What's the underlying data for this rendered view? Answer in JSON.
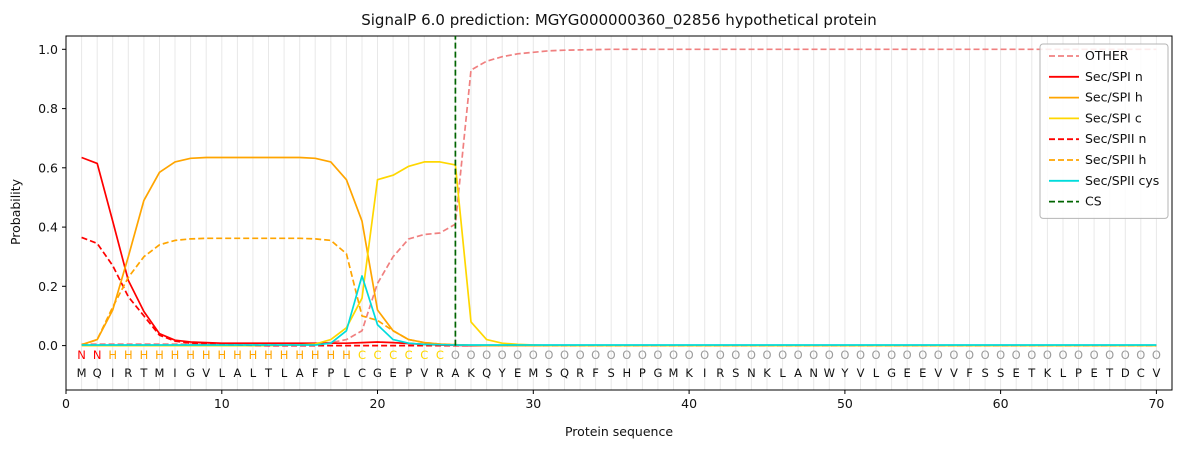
{
  "chart_data": {
    "type": "line",
    "title": "SignalP 6.0 prediction: MGYG000000360_02856 hypothetical protein",
    "xlabel": "Protein sequence",
    "ylabel": "Probability",
    "xticks": [
      0,
      10,
      20,
      30,
      40,
      50,
      60,
      70
    ],
    "yticks": [
      0,
      0.2,
      0.4,
      0.6,
      0.8,
      1
    ],
    "xlim": [
      0,
      71
    ],
    "ylim": [
      0,
      1.05
    ],
    "grid": "vertical-per-residue",
    "legend_position": "upper right",
    "sequence": "MQIRTMIGVLALTLAFPLCGEPVRAKQYEMSQRFSHPGMKIRSNKLANWYVLGEEVVFSSETKLPETDCV",
    "region_labels": "NNHHHHHHHHHHHHHHHHCCCCCCOOOOOOOOOOOOOOOOOOOOOOOOOOOOOOOOOOOOOOOOOOOOOO",
    "region_colors": {
      "N": "#ff0000",
      "H": "#ffa500",
      "C": "#ffd700",
      "O": "#9c9c9c"
    },
    "cs": {
      "label": "CS",
      "x": 25,
      "color": "#006400"
    },
    "series": [
      {
        "name": "OTHER",
        "color": "#f08080",
        "dash": true,
        "values": [
          0.005,
          0.005,
          0.005,
          0.005,
          0.005,
          0.005,
          0.005,
          0.005,
          0.005,
          0.005,
          0.005,
          0.005,
          0.005,
          0.005,
          0.005,
          0.007,
          0.01,
          0.02,
          0.05,
          0.21,
          0.3,
          0.36,
          0.375,
          0.38,
          0.41,
          0.93,
          0.96,
          0.975,
          0.985,
          0.99,
          0.995,
          0.997,
          0.998,
          0.999,
          1.0,
          1.0,
          1.0,
          1.0,
          1.0,
          1.0,
          1.0,
          1.0,
          1.0,
          1.0,
          1.0,
          1.0,
          1.0,
          1.0,
          1.0,
          1.0,
          1.0,
          1.0,
          1.0,
          1.0,
          1.0,
          1.0,
          1.0,
          1.0,
          1.0,
          1.0,
          1.0,
          1.0,
          1.0,
          1.0,
          1.0,
          1.0,
          1.0,
          1.0,
          1.0,
          1.0
        ]
      },
      {
        "name": "Sec/SPI n",
        "color": "#ff0000",
        "dash": false,
        "values": [
          0.635,
          0.615,
          0.42,
          0.22,
          0.115,
          0.04,
          0.018,
          0.012,
          0.01,
          0.008,
          0.008,
          0.008,
          0.008,
          0.008,
          0.008,
          0.008,
          0.008,
          0.008,
          0.01,
          0.012,
          0.01,
          0.007,
          0.004,
          0.002,
          0.001,
          0,
          0,
          0,
          0,
          0,
          0,
          0,
          0,
          0,
          0,
          0,
          0,
          0,
          0,
          0,
          0,
          0,
          0,
          0,
          0,
          0,
          0,
          0,
          0,
          0,
          0,
          0,
          0,
          0,
          0,
          0,
          0,
          0,
          0,
          0,
          0,
          0,
          0,
          0,
          0,
          0,
          0,
          0,
          0,
          0
        ]
      },
      {
        "name": "Sec/SPI h",
        "color": "#ffa500",
        "dash": false,
        "values": [
          0.003,
          0.02,
          0.12,
          0.3,
          0.49,
          0.585,
          0.62,
          0.632,
          0.635,
          0.635,
          0.635,
          0.635,
          0.635,
          0.635,
          0.635,
          0.632,
          0.62,
          0.56,
          0.42,
          0.12,
          0.05,
          0.02,
          0.01,
          0.005,
          0.003,
          0.001,
          0,
          0,
          0,
          0,
          0,
          0,
          0,
          0,
          0,
          0,
          0,
          0,
          0,
          0,
          0,
          0,
          0,
          0,
          0,
          0,
          0,
          0,
          0,
          0,
          0,
          0,
          0,
          0,
          0,
          0,
          0,
          0,
          0,
          0,
          0,
          0,
          0,
          0,
          0,
          0,
          0,
          0,
          0,
          0
        ]
      },
      {
        "name": "Sec/SPI c",
        "color": "#ffd700",
        "dash": false,
        "values": [
          0,
          0,
          0,
          0,
          0,
          0,
          0,
          0,
          0,
          0,
          0,
          0,
          0,
          0.001,
          0.002,
          0.005,
          0.02,
          0.06,
          0.16,
          0.56,
          0.575,
          0.605,
          0.62,
          0.62,
          0.61,
          0.08,
          0.02,
          0.008,
          0.004,
          0.002,
          0,
          0,
          0,
          0,
          0,
          0,
          0,
          0,
          0,
          0,
          0,
          0,
          0,
          0,
          0,
          0,
          0,
          0,
          0,
          0,
          0,
          0,
          0,
          0,
          0,
          0,
          0,
          0,
          0,
          0,
          0,
          0,
          0,
          0,
          0,
          0,
          0,
          0,
          0,
          0
        ]
      },
      {
        "name": "Sec/SPII n",
        "color": "#ff0000",
        "dash": true,
        "values": [
          0.365,
          0.345,
          0.27,
          0.165,
          0.1,
          0.035,
          0.015,
          0.008,
          0.005,
          0.003,
          0.002,
          0.001,
          0,
          0,
          0,
          0,
          0,
          0,
          0,
          0,
          0,
          0,
          0,
          0,
          0,
          0,
          0,
          0,
          0,
          0,
          0,
          0,
          0,
          0,
          0,
          0,
          0,
          0,
          0,
          0,
          0,
          0,
          0,
          0,
          0,
          0,
          0,
          0,
          0,
          0,
          0,
          0,
          0,
          0,
          0,
          0,
          0,
          0,
          0,
          0,
          0,
          0,
          0,
          0,
          0,
          0,
          0,
          0,
          0,
          0
        ]
      },
      {
        "name": "Sec/SPII h",
        "color": "#ffa500",
        "dash": true,
        "values": [
          0.002,
          0.02,
          0.13,
          0.23,
          0.3,
          0.34,
          0.355,
          0.36,
          0.362,
          0.362,
          0.362,
          0.362,
          0.362,
          0.362,
          0.362,
          0.36,
          0.355,
          0.31,
          0.1,
          0.085,
          0.05,
          0.02,
          0.01,
          0.005,
          0.003,
          0.001,
          0,
          0,
          0,
          0,
          0,
          0,
          0,
          0,
          0,
          0,
          0,
          0,
          0,
          0,
          0,
          0,
          0,
          0,
          0,
          0,
          0,
          0,
          0,
          0,
          0,
          0,
          0,
          0,
          0,
          0,
          0,
          0,
          0,
          0,
          0,
          0,
          0,
          0,
          0,
          0,
          0,
          0,
          0,
          0
        ]
      },
      {
        "name": "Sec/SPII cys",
        "color": "#00dcdc",
        "dash": false,
        "values": [
          0.002,
          0.002,
          0.002,
          0.002,
          0.002,
          0.002,
          0.002,
          0.002,
          0.002,
          0.002,
          0.002,
          0.002,
          0.002,
          0.002,
          0.002,
          0.002,
          0.008,
          0.05,
          0.235,
          0.07,
          0.02,
          0.008,
          0.004,
          0.003,
          0.002,
          0.002,
          0.002,
          0.002,
          0.002,
          0.002,
          0.002,
          0.002,
          0.002,
          0.002,
          0.002,
          0.002,
          0.002,
          0.002,
          0.002,
          0.002,
          0.002,
          0.002,
          0.002,
          0.002,
          0.002,
          0.002,
          0.002,
          0.002,
          0.002,
          0.002,
          0.002,
          0.002,
          0.002,
          0.002,
          0.002,
          0.002,
          0.002,
          0.002,
          0.002,
          0.002,
          0.002,
          0.002,
          0.002,
          0.002,
          0.002,
          0.002,
          0.002,
          0.002,
          0.002,
          0.002
        ]
      }
    ]
  }
}
